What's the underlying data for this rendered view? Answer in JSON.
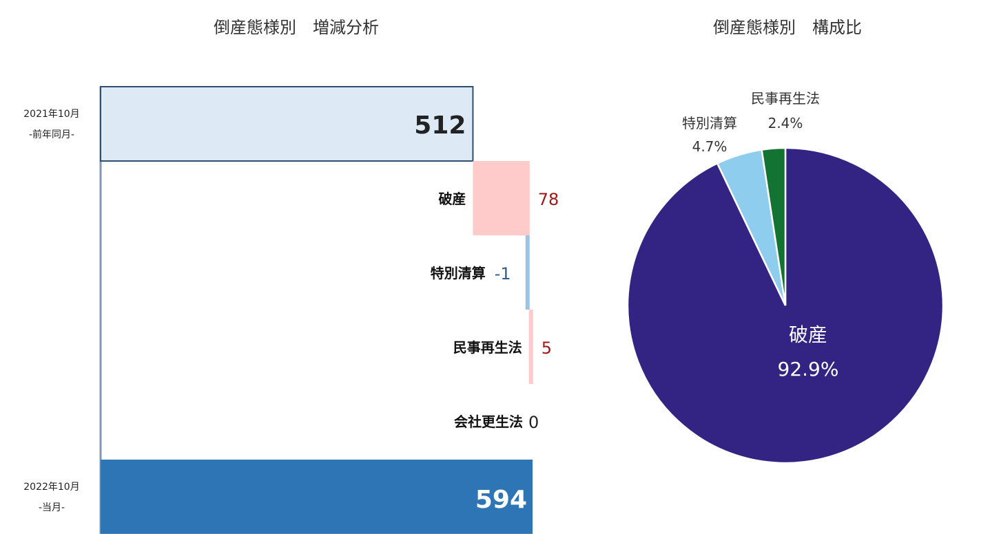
{
  "chart_data": [
    {
      "type": "waterfall",
      "title": "倒産態様別　増減分析",
      "start": {
        "label_line1": "2021年10月",
        "label_line2": "-前年同月-",
        "value": 512
      },
      "steps": [
        {
          "label": "破産",
          "value": 78,
          "display": "78"
        },
        {
          "label": "特別清算",
          "value": -1,
          "display": "-1"
        },
        {
          "label": "民事再生法",
          "value": 5,
          "display": "5"
        },
        {
          "label": "会社更生法",
          "value": 0,
          "display": "0"
        }
      ],
      "end": {
        "label_line1": "2022年10月",
        "label_line2": "-当月-",
        "value": 594
      },
      "xlim": [
        0,
        600
      ],
      "colors": {
        "start_fill": "#dde9f5",
        "start_stroke": "#2f4f6f",
        "increase": "#ffcaca",
        "decrease": "#9dc3e6",
        "end_fill": "#2e75b6",
        "axis": "#8497b0",
        "increase_text": "#a01818",
        "decrease_text": "#2f5f8f"
      }
    },
    {
      "type": "pie",
      "title": "倒産態様別　構成比",
      "slices": [
        {
          "label": "破産",
          "value": 92.9,
          "display": "92.9%",
          "color": "#332484"
        },
        {
          "label": "特別清算",
          "value": 4.7,
          "display": "4.7%",
          "color": "#8ecdee"
        },
        {
          "label": "民事再生法",
          "value": 2.4,
          "display": "2.4%",
          "color": "#137333"
        }
      ]
    }
  ]
}
